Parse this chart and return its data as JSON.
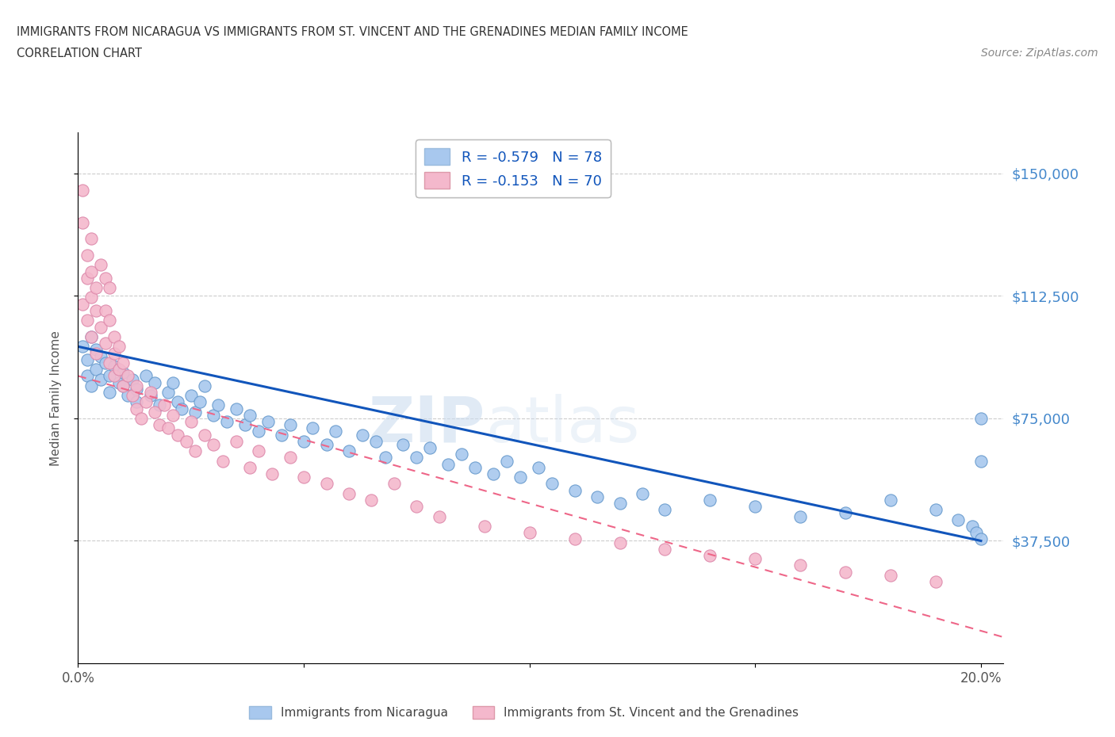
{
  "title_line1": "IMMIGRANTS FROM NICARAGUA VS IMMIGRANTS FROM ST. VINCENT AND THE GRENADINES MEDIAN FAMILY INCOME",
  "title_line2": "CORRELATION CHART",
  "source_text": "Source: ZipAtlas.com",
  "ylabel": "Median Family Income",
  "xlim": [
    0,
    0.205
  ],
  "ylim": [
    0,
    162500
  ],
  "yticks": [
    37500,
    75000,
    112500,
    150000
  ],
  "ytick_labels": [
    "$37,500",
    "$75,000",
    "$112,500",
    "$150,000"
  ],
  "xticks": [
    0.0,
    0.05,
    0.1,
    0.15,
    0.2
  ],
  "xtick_labels": [
    "0.0%",
    "",
    "",
    "",
    "20.0%"
  ],
  "watermark_zip": "ZIP",
  "watermark_atlas": "atlas",
  "series1_color": "#A8C8EE",
  "series1_edge": "#6699CC",
  "series2_color": "#F4B8CC",
  "series2_edge": "#DD88AA",
  "trend1_color": "#1155BB",
  "trend2_color": "#EE6688",
  "R1": -0.579,
  "N1": 78,
  "R2": -0.153,
  "N2": 70,
  "legend_label1": "Immigrants from Nicaragua",
  "legend_label2": "Immigrants from St. Vincent and the Grenadines",
  "series1_x": [
    0.001,
    0.002,
    0.002,
    0.003,
    0.003,
    0.004,
    0.004,
    0.005,
    0.005,
    0.006,
    0.007,
    0.007,
    0.008,
    0.009,
    0.01,
    0.01,
    0.011,
    0.012,
    0.013,
    0.013,
    0.015,
    0.016,
    0.017,
    0.018,
    0.02,
    0.021,
    0.022,
    0.023,
    0.025,
    0.026,
    0.027,
    0.028,
    0.03,
    0.031,
    0.033,
    0.035,
    0.037,
    0.038,
    0.04,
    0.042,
    0.045,
    0.047,
    0.05,
    0.052,
    0.055,
    0.057,
    0.06,
    0.063,
    0.066,
    0.068,
    0.072,
    0.075,
    0.078,
    0.082,
    0.085,
    0.088,
    0.092,
    0.095,
    0.098,
    0.102,
    0.105,
    0.11,
    0.115,
    0.12,
    0.125,
    0.13,
    0.14,
    0.15,
    0.16,
    0.17,
    0.18,
    0.19,
    0.195,
    0.198,
    0.199,
    0.2,
    0.2,
    0.2
  ],
  "series1_y": [
    97000,
    93000,
    88000,
    100000,
    85000,
    96000,
    90000,
    94000,
    87000,
    92000,
    88000,
    83000,
    91000,
    86000,
    89000,
    85000,
    82000,
    87000,
    84000,
    80000,
    88000,
    82000,
    86000,
    79000,
    83000,
    86000,
    80000,
    78000,
    82000,
    77000,
    80000,
    85000,
    76000,
    79000,
    74000,
    78000,
    73000,
    76000,
    71000,
    74000,
    70000,
    73000,
    68000,
    72000,
    67000,
    71000,
    65000,
    70000,
    68000,
    63000,
    67000,
    63000,
    66000,
    61000,
    64000,
    60000,
    58000,
    62000,
    57000,
    60000,
    55000,
    53000,
    51000,
    49000,
    52000,
    47000,
    50000,
    48000,
    45000,
    46000,
    50000,
    47000,
    44000,
    42000,
    40000,
    38000,
    75000,
    62000
  ],
  "series2_x": [
    0.001,
    0.001,
    0.001,
    0.002,
    0.002,
    0.002,
    0.003,
    0.003,
    0.003,
    0.003,
    0.004,
    0.004,
    0.004,
    0.005,
    0.005,
    0.006,
    0.006,
    0.006,
    0.007,
    0.007,
    0.007,
    0.008,
    0.008,
    0.008,
    0.009,
    0.009,
    0.01,
    0.01,
    0.011,
    0.012,
    0.013,
    0.013,
    0.014,
    0.015,
    0.016,
    0.017,
    0.018,
    0.019,
    0.02,
    0.021,
    0.022,
    0.024,
    0.025,
    0.026,
    0.028,
    0.03,
    0.032,
    0.035,
    0.038,
    0.04,
    0.043,
    0.047,
    0.05,
    0.055,
    0.06,
    0.065,
    0.07,
    0.075,
    0.08,
    0.09,
    0.1,
    0.11,
    0.12,
    0.13,
    0.14,
    0.15,
    0.16,
    0.17,
    0.18,
    0.19
  ],
  "series2_y": [
    145000,
    135000,
    110000,
    125000,
    118000,
    105000,
    130000,
    112000,
    100000,
    120000,
    108000,
    95000,
    115000,
    122000,
    103000,
    118000,
    98000,
    108000,
    105000,
    92000,
    115000,
    100000,
    88000,
    95000,
    90000,
    97000,
    85000,
    92000,
    88000,
    82000,
    78000,
    85000,
    75000,
    80000,
    83000,
    77000,
    73000,
    79000,
    72000,
    76000,
    70000,
    68000,
    74000,
    65000,
    70000,
    67000,
    62000,
    68000,
    60000,
    65000,
    58000,
    63000,
    57000,
    55000,
    52000,
    50000,
    55000,
    48000,
    45000,
    42000,
    40000,
    38000,
    37000,
    35000,
    33000,
    32000,
    30000,
    28000,
    27000,
    25000
  ]
}
